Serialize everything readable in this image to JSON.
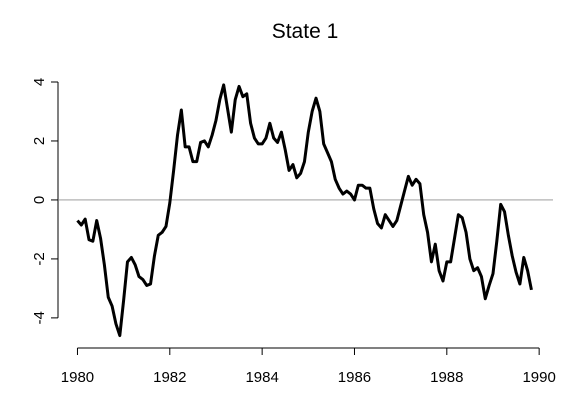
{
  "chart_data": {
    "type": "line",
    "title": "State 1",
    "x": [
      1980,
      1980.083,
      1980.167,
      1980.25,
      1980.333,
      1980.417,
      1980.5,
      1980.583,
      1980.667,
      1980.75,
      1980.833,
      1980.917,
      1981,
      1981.083,
      1981.167,
      1981.25,
      1981.333,
      1981.417,
      1981.5,
      1981.583,
      1981.667,
      1981.75,
      1981.833,
      1981.917,
      1982,
      1982.083,
      1982.167,
      1982.25,
      1982.333,
      1982.417,
      1982.5,
      1982.583,
      1982.667,
      1982.75,
      1982.833,
      1982.917,
      1983,
      1983.083,
      1983.167,
      1983.25,
      1983.333,
      1983.417,
      1983.5,
      1983.583,
      1983.667,
      1983.75,
      1983.833,
      1983.917,
      1984,
      1984.083,
      1984.167,
      1984.25,
      1984.333,
      1984.417,
      1984.5,
      1984.583,
      1984.667,
      1984.75,
      1984.833,
      1984.917,
      1985,
      1985.083,
      1985.167,
      1985.25,
      1985.333,
      1985.417,
      1985.5,
      1985.583,
      1985.667,
      1985.75,
      1985.833,
      1985.917,
      1986,
      1986.083,
      1986.167,
      1986.25,
      1986.333,
      1986.417,
      1986.5,
      1986.583,
      1986.667,
      1986.75,
      1986.833,
      1986.917,
      1987,
      1987.083,
      1987.167,
      1987.25,
      1987.333,
      1987.417,
      1987.5,
      1987.583,
      1987.667,
      1987.75,
      1987.833,
      1987.917,
      1988,
      1988.083,
      1988.167,
      1988.25,
      1988.333,
      1988.417,
      1988.5,
      1988.583,
      1988.667,
      1988.75,
      1988.833,
      1988.917,
      1989,
      1989.083,
      1989.167,
      1989.25,
      1989.333,
      1989.417,
      1989.5,
      1989.583,
      1989.667,
      1989.75,
      1989.833
    ],
    "series": [
      {
        "color": "#000000",
        "values": [
          -0.7,
          -0.85,
          -0.65,
          -1.35,
          -1.4,
          -0.7,
          -1.3,
          -2.2,
          -3.3,
          -3.6,
          -4.2,
          -4.6,
          -3.4,
          -2.1,
          -1.95,
          -2.2,
          -2.6,
          -2.7,
          -2.9,
          -2.85,
          -1.9,
          -1.2,
          -1.1,
          -0.9,
          -0.1,
          1.0,
          2.2,
          3.05,
          1.8,
          1.8,
          1.3,
          1.3,
          1.95,
          2.0,
          1.8,
          2.2,
          2.7,
          3.4,
          3.9,
          3.1,
          2.3,
          3.4,
          3.85,
          3.5,
          3.6,
          2.6,
          2.1,
          1.9,
          1.9,
          2.1,
          2.6,
          2.1,
          1.95,
          2.3,
          1.7,
          1.0,
          1.2,
          0.75,
          0.9,
          1.3,
          2.3,
          3.0,
          3.45,
          3.0,
          1.9,
          1.6,
          1.3,
          0.7,
          0.4,
          0.2,
          0.3,
          0.2,
          0.0,
          0.5,
          0.5,
          0.4,
          0.4,
          -0.3,
          -0.8,
          -0.95,
          -0.5,
          -0.7,
          -0.9,
          -0.7,
          -0.2,
          0.3,
          0.8,
          0.5,
          0.7,
          0.55,
          -0.5,
          -1.1,
          -2.1,
          -1.5,
          -2.4,
          -2.75,
          -2.1,
          -2.1,
          -1.3,
          -0.5,
          -0.6,
          -1.1,
          -2.0,
          -2.4,
          -2.3,
          -2.6,
          -3.35,
          -2.9,
          -2.5,
          -1.4,
          -0.15,
          -0.4,
          -1.2,
          -1.9,
          -2.45,
          -2.85,
          -1.95,
          -2.4,
          -3.05
        ]
      }
    ],
    "reference_line": 0,
    "xlim": [
      1979.6,
      1990.3
    ],
    "xticks": [
      1980,
      1982,
      1984,
      1986,
      1988,
      1990
    ],
    "ylim": [
      -4.75,
      5.0
    ],
    "yticks": [
      -4,
      -2,
      0,
      2,
      4
    ]
  }
}
